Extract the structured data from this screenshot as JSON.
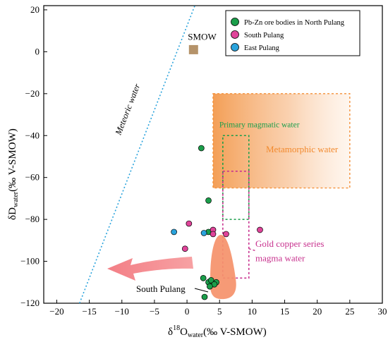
{
  "chart_data": {
    "type": "scatter",
    "xlabel": {
      "main": "δ",
      "sup": "18",
      "o": "O",
      "sub": "water",
      "units": "(‰ V-SMOW)"
    },
    "ylabel": {
      "main": "δD",
      "sub": "water",
      "units": "(‰  V-SMOW)"
    },
    "xlim": [
      -22,
      30
    ],
    "ylim": [
      -120,
      22
    ],
    "xticks": [
      -20,
      -15,
      -10,
      -5,
      0,
      5,
      10,
      15,
      20,
      25,
      30
    ],
    "yticks": [
      20,
      0,
      -20,
      -40,
      -60,
      -80,
      -100,
      -120
    ],
    "legend": {
      "placement": "top-right",
      "entries": [
        {
          "label": "Pb-Zn ore bodies in North Pulang",
          "color": "#1a9e4a"
        },
        {
          "label": "South Pulang",
          "color": "#e0449a"
        },
        {
          "label": "East Pulang",
          "color": "#2aa3dc"
        }
      ]
    },
    "series": [
      {
        "name": "Pb-Zn ore bodies in North Pulang",
        "color": "#1a9e4a",
        "points": [
          [
            2.2,
            -46
          ],
          [
            3.3,
            -71
          ],
          [
            3.3,
            -86
          ],
          [
            2.5,
            -108
          ],
          [
            3.3,
            -110
          ],
          [
            3.7,
            -109
          ],
          [
            4.5,
            -110
          ],
          [
            4.2,
            -111
          ],
          [
            3.5,
            -112
          ],
          [
            2.7,
            -117
          ]
        ]
      },
      {
        "name": "South Pulang",
        "color": "#e0449a",
        "points": [
          [
            0.3,
            -82
          ],
          [
            4.0,
            -85
          ],
          [
            4.0,
            -87
          ],
          [
            6.0,
            -87
          ],
          [
            11.2,
            -85
          ],
          [
            -0.3,
            -94
          ]
        ]
      },
      {
        "name": "East Pulang",
        "color": "#2aa3dc",
        "points": [
          [
            -2.0,
            -86
          ],
          [
            2.6,
            -86.5
          ]
        ]
      }
    ],
    "meteoric_line": {
      "x1": -16.5,
      "y1": -120,
      "x2": 1.2,
      "y2": 22,
      "label": "Meteoric water",
      "color": "#2aa3dc"
    },
    "smow": {
      "x": 1,
      "y": 1,
      "label": "SMOW",
      "color": "#b5936a"
    },
    "regions": {
      "metamorphic": {
        "x": [
          4,
          25
        ],
        "y": [
          -65,
          -20
        ],
        "label": "Metamorphic water",
        "color": "#f4913a"
      },
      "primary_magmatic": {
        "x": [
          5.5,
          9.5
        ],
        "y": [
          -80,
          -40
        ],
        "label": "Primary magmatic water",
        "color": "#1a9e4a"
      },
      "gold_copper": {
        "x": [
          5.5,
          9.5
        ],
        "y": [
          -108,
          -57
        ],
        "label_lines": [
          "Gold copper series",
          "magma water"
        ],
        "color": "#c8338f"
      },
      "south_pulang": {
        "label": "South Pulang",
        "color": "#f4916a"
      }
    }
  }
}
